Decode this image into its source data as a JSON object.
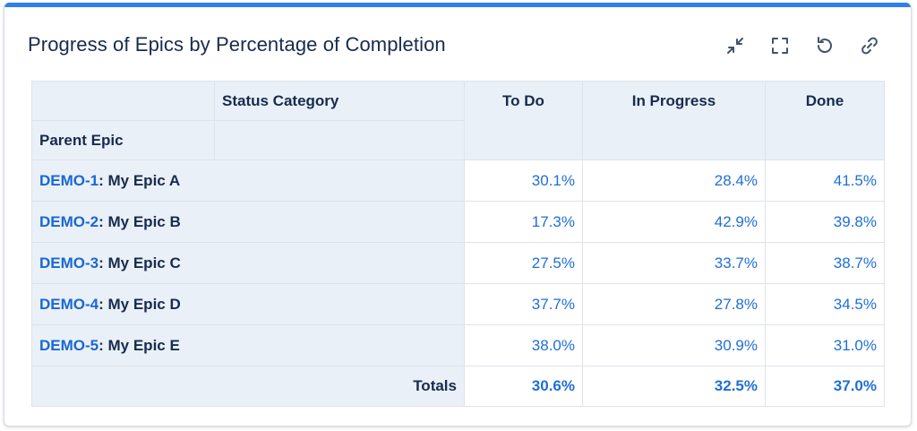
{
  "card": {
    "title": "Progress of Epics by Percentage of Completion",
    "accent_color": "#2f80ed"
  },
  "toolbar": {
    "icons": [
      "collapse-icon",
      "fullscreen-icon",
      "refresh-icon",
      "link-icon"
    ]
  },
  "table": {
    "status_category_label": "Status Category",
    "parent_epic_label": "Parent Epic",
    "columns": [
      "To Do",
      "In Progress",
      "Done"
    ],
    "rows": [
      {
        "key": "DEMO-1",
        "name": ": My Epic A",
        "values": [
          "30.1%",
          "28.4%",
          "41.5%"
        ]
      },
      {
        "key": "DEMO-2",
        "name": ": My Epic B",
        "values": [
          "17.3%",
          "42.9%",
          "39.8%"
        ]
      },
      {
        "key": "DEMO-3",
        "name": ": My Epic C",
        "values": [
          "27.5%",
          "33.7%",
          "38.7%"
        ]
      },
      {
        "key": "DEMO-4",
        "name": ": My Epic D",
        "values": [
          "37.7%",
          "27.8%",
          "34.5%"
        ]
      },
      {
        "key": "DEMO-5",
        "name": ": My Epic E",
        "values": [
          "38.0%",
          "30.9%",
          "31.0%"
        ]
      }
    ],
    "totals_label": "Totals",
    "totals": [
      "30.6%",
      "32.5%",
      "37.0%"
    ]
  }
}
